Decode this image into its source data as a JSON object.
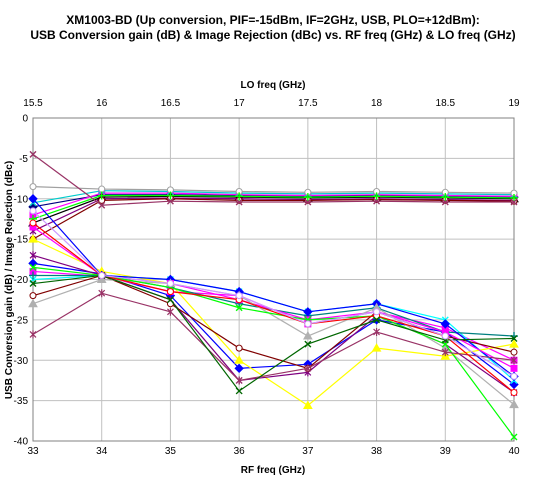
{
  "chart_data": {
    "type": "line",
    "title_line1": "XM1003-BD (Up conversion, PIF=-15dBm, IF=2GHz, USB, PLO=+12dBm):",
    "title_line2": "USB Conversion gain (dB) & Image Rejection (dBc) vs. RF freq (GHz) & LO freq (GHz)",
    "xlabel": "RF freq (GHz)",
    "x2label": "LO freq (GHz)",
    "ylabel": "USB Conversion gain (dB) / Image Rejection (dBc)",
    "x": [
      33,
      34,
      35,
      36,
      37,
      38,
      39,
      40
    ],
    "xlim": [
      33,
      40
    ],
    "x_ticks": [
      "33",
      "34",
      "35",
      "36",
      "37",
      "38",
      "39",
      "40"
    ],
    "x2_ticks": [
      "15.5",
      "16",
      "16.5",
      "17",
      "17.5",
      "18",
      "18.5",
      "19"
    ],
    "ylim": [
      -40,
      0
    ],
    "y_ticks": [
      "0",
      "-5",
      "-10",
      "-15",
      "-20",
      "-25",
      "-30",
      "-35",
      "-40"
    ],
    "grid": true,
    "series": [
      {
        "color": "#000080",
        "marker": "diamond",
        "values": [
          -11,
          -9.5,
          -9.5,
          -9.6,
          -9.7,
          -9.6,
          -9.7,
          -9.8
        ]
      },
      {
        "color": "#ff00ff",
        "marker": "square",
        "values": [
          -12,
          -9.3,
          -9.3,
          -9.5,
          -9.6,
          -9.5,
          -9.6,
          -9.7
        ]
      },
      {
        "color": "#000000",
        "marker": "triangle",
        "values": [
          -13,
          -9.8,
          -9.7,
          -9.8,
          -9.9,
          -9.8,
          -9.9,
          -10
        ]
      },
      {
        "color": "#00cccc",
        "marker": "x",
        "values": [
          -10.5,
          -9,
          -9.1,
          -9.3,
          -9.4,
          -9.3,
          -9.4,
          -9.5
        ]
      },
      {
        "color": "#800080",
        "marker": "star",
        "values": [
          -14,
          -10,
          -9.9,
          -10,
          -10.1,
          -10,
          -10.1,
          -10.2
        ]
      },
      {
        "color": "#800000",
        "marker": "circle",
        "values": [
          -15,
          -10.2,
          -10,
          -10.2,
          -10.2,
          -10.1,
          -10.2,
          -10.3
        ]
      },
      {
        "color": "#a0a0a0",
        "marker": "circle",
        "values": [
          -8.5,
          -8.8,
          -8.9,
          -9.1,
          -9.2,
          -9.1,
          -9.2,
          -9.3
        ]
      },
      {
        "color": "#00ff00",
        "marker": "plus",
        "values": [
          -12.5,
          -9.6,
          -9.6,
          -9.7,
          -9.8,
          -9.7,
          -9.8,
          -9.9
        ]
      },
      {
        "color": "#993366",
        "marker": "x",
        "values": [
          -4.5,
          -10.8,
          -10.3,
          -10.4,
          -10.4,
          -10.3,
          -10.4,
          -10.4
        ]
      },
      {
        "color": "#0000ff",
        "marker": "diamond",
        "values": [
          -18,
          -19.3,
          -22,
          -31,
          -30.5,
          -25,
          -26.5,
          -33
        ]
      },
      {
        "color": "#ff00ff",
        "marker": "square",
        "values": [
          -19,
          -19.6,
          -21.5,
          -22,
          -25.5,
          -24,
          -26,
          -30
        ]
      },
      {
        "color": "#ffff00",
        "marker": "triangle",
        "values": [
          -15,
          -19,
          -20.5,
          -30,
          -35.6,
          -28.5,
          -29.5,
          -28
        ]
      },
      {
        "color": "#00ffff",
        "marker": "x",
        "values": [
          -20,
          -19.5,
          -20,
          -21.5,
          -24,
          -23,
          -25,
          -32.5
        ]
      },
      {
        "color": "#800080",
        "marker": "star",
        "values": [
          -17,
          -19.5,
          -22.5,
          -32.5,
          -31.5,
          -24.5,
          -28,
          -34
        ]
      },
      {
        "color": "#800000",
        "marker": "circle",
        "values": [
          -22,
          -19.5,
          -23,
          -28.5,
          -31,
          -24,
          -27,
          -29
        ]
      },
      {
        "color": "#008080",
        "marker": "plus",
        "values": [
          -19.5,
          -19.5,
          -21,
          -23,
          -24.5,
          -23.5,
          -26.5,
          -27
        ]
      },
      {
        "color": "#0000ff",
        "marker": "diamond",
        "values": [
          -10,
          -19.5,
          -20,
          -21.5,
          -24,
          -23,
          -25.5,
          -32
        ]
      },
      {
        "color": "#ff00ff",
        "marker": "square",
        "values": [
          -13.5,
          -19.5,
          -20.5,
          -22.5,
          -25,
          -24,
          -26.5,
          -31
        ]
      },
      {
        "color": "#b0b0b0",
        "marker": "triangle",
        "values": [
          -23,
          -20,
          -20.5,
          -22,
          -27,
          -23.5,
          -28.5,
          -35.5
        ]
      },
      {
        "color": "#00ff00",
        "marker": "x",
        "values": [
          -18.5,
          -19.5,
          -21,
          -23.5,
          -25,
          -24.5,
          -28,
          -39.5
        ]
      },
      {
        "color": "#993366",
        "marker": "star",
        "values": [
          -26.8,
          -21.7,
          -24,
          -32.5,
          -31,
          -26.5,
          -29,
          -30
        ]
      },
      {
        "color": "#ff0000",
        "marker": "circle",
        "values": [
          -13,
          -19.5,
          -21.5,
          -22.5,
          -25.5,
          -24.5,
          -27,
          -34
        ]
      },
      {
        "color": "#006600",
        "marker": "x",
        "values": [
          -20.5,
          -19.5,
          -22.5,
          -33.8,
          -28,
          -25,
          -27.5,
          -27.3
        ]
      },
      {
        "color": "#cc99ff",
        "marker": "circle",
        "values": [
          -11.5,
          -19.5,
          -20.5,
          -22,
          -25.5,
          -24,
          -27,
          -32
        ]
      }
    ]
  }
}
